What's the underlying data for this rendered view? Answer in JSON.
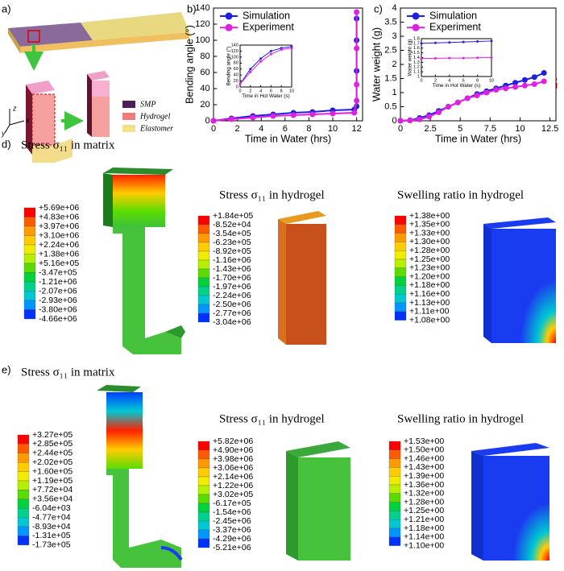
{
  "panels": {
    "a": {
      "label": "a)",
      "legend": [
        "SMP",
        "Hydrogel",
        "Elastomer"
      ],
      "axes": [
        "z",
        "y",
        "x"
      ]
    },
    "b": {
      "label": "b)"
    },
    "c": {
      "label": "c)"
    },
    "d": {
      "label": "d)",
      "matrix": {
        "title": "Stress σ₁₁ in matrix",
        "scale": [
          "+5.69e+06",
          "+4.83e+06",
          "+3.97e+06",
          "+3.10e+06",
          "+2.24e+06",
          "+1.38e+06",
          "+5.16e+05",
          "-3.47e+05",
          "-1.21e+06",
          "-2.07e+06",
          "-2.93e+06",
          "-3.80e+06",
          "-4.66e+06"
        ]
      },
      "hydrogel_stress": {
        "title": "Stress σ₁₁ in hydrogel",
        "scale": [
          "+1.84e+05",
          "-8.52e+04",
          "-3.54e+05",
          "-6.23e+05",
          "-8.92e+05",
          "-1.16e+06",
          "-1.43e+06",
          "-1.70e+06",
          "-1.97e+06",
          "-2.24e+06",
          "-2.50e+06",
          "-2.77e+06",
          "-3.04e+06"
        ]
      },
      "hydrogel_swelling": {
        "title": "Swelling ratio in hydrogel",
        "scale": [
          "+1.38e+00",
          "+1.35e+00",
          "+1.33e+00",
          "+1.30e+00",
          "+1.28e+00",
          "+1.25e+00",
          "+1.23e+00",
          "+1.20e+00",
          "+1.18e+00",
          "+1.16e+00",
          "+1.13e+00",
          "+1.11e+00",
          "+1.08e+00"
        ]
      }
    },
    "e": {
      "label": "e)",
      "matrix": {
        "title": "Stress σ₁₁ in matrix",
        "scale": [
          "+3.27e+05",
          "+2.85e+05",
          "+2.44e+05",
          "+2.02e+05",
          "+1.60e+05",
          "+1.19e+05",
          "+7.72e+04",
          "+3.56e+04",
          "-6.04e+03",
          "-4.77e+04",
          "-8.93e+04",
          "-1.31e+05",
          "-1.73e+05"
        ]
      },
      "hydrogel_stress": {
        "title": "Stress σ₁₁ in hydrogel",
        "scale": [
          "+5.82e+06",
          "+4.90e+06",
          "+3.98e+06",
          "+3.06e+06",
          "+2.14e+06",
          "+1.22e+06",
          "+3.02e+05",
          "-6.17e+05",
          "-1.54e+06",
          "-2.45e+06",
          "-3.37e+06",
          "-4.29e+06",
          "-5.21e+06"
        ]
      },
      "hydrogel_swelling": {
        "title": "Swelling ratio in hydrogel",
        "scale": [
          "+1.53e+00",
          "+1.50e+00",
          "+1.46e+00",
          "+1.43e+00",
          "+1.39e+00",
          "+1.36e+00",
          "+1.32e+00",
          "+1.28e+00",
          "+1.25e+00",
          "+1.21e+00",
          "+1.18e+00",
          "+1.14e+00",
          "+1.10e+00"
        ]
      }
    }
  },
  "colormap": [
    "#ff0000",
    "#ff5a00",
    "#ff9a00",
    "#ffcc00",
    "#f0ec00",
    "#b4f000",
    "#5adc00",
    "#00d23c",
    "#00d28c",
    "#00c8d2",
    "#0096ff",
    "#0032ff"
  ],
  "chart_data": [
    {
      "type": "line",
      "xlabel": "Time in Water (hrs)",
      "ylabel": "Bending angle (°)",
      "xlim": [
        0,
        12.5
      ],
      "ylim": [
        0,
        140
      ],
      "xticks": [
        0,
        2,
        4,
        6,
        8,
        10,
        12
      ],
      "yticks": [
        0,
        20,
        40,
        60,
        80,
        100,
        120,
        140
      ],
      "legend": "upper left",
      "series": [
        {
          "name": "Simulation",
          "color": "#1f1fe0",
          "x": [
            0,
            1.5,
            3.3,
            5,
            6.7,
            8.3,
            10,
            11.8,
            12,
            12,
            12,
            12
          ],
          "values": [
            0,
            3,
            6,
            8,
            10,
            11,
            13,
            14,
            18,
            62,
            100,
            127
          ]
        },
        {
          "name": "Experiment",
          "color": "#e020e0",
          "x": [
            0,
            1.5,
            3.3,
            5,
            6.7,
            8.3,
            10,
            11.8,
            12,
            12,
            12,
            12
          ],
          "values": [
            0,
            2,
            4,
            6,
            7,
            8,
            9,
            10,
            25,
            45,
            90,
            135
          ]
        }
      ],
      "inset": {
        "type": "line",
        "xlabel": "Time in Hot Water (s)",
        "ylabel": "Bending angle (°)",
        "xlim": [
          0,
          10
        ],
        "ylim": [
          0,
          140
        ],
        "xticks": [
          0,
          2,
          4,
          6,
          8,
          10
        ],
        "yticks": [
          0,
          20,
          40,
          60,
          80,
          100,
          120,
          140
        ],
        "series": [
          {
            "color": "#1f1fe0",
            "x": [
              0,
              2,
              4,
              6,
              8,
              10
            ],
            "values": [
              10,
              60,
              95,
              120,
              130,
              135
            ]
          },
          {
            "color": "#e020e0",
            "x": [
              0,
              2,
              4,
              6,
              8,
              10
            ],
            "values": [
              10,
              50,
              85,
              110,
              125,
              130
            ]
          }
        ]
      }
    },
    {
      "type": "line",
      "xlabel": "Time in Water (hrs)",
      "ylabel": "Water weight (g)",
      "xlim": [
        0,
        13
      ],
      "ylim": [
        0,
        4
      ],
      "xticks": [
        0,
        2.5,
        5,
        7.5,
        10,
        12.5
      ],
      "yticks": [
        0,
        0.5,
        1,
        1.5,
        2,
        2.5,
        3,
        3.5,
        4
      ],
      "legend": "upper left",
      "series": [
        {
          "name": "Simulation",
          "color": "#1f1fe0",
          "x": [
            0,
            0.8,
            1.6,
            2.4,
            3.2,
            4,
            4.8,
            5.6,
            6.4,
            7.2,
            8,
            8.8,
            9.6,
            10.4,
            11.2,
            12
          ],
          "values": [
            0,
            0.02,
            0.1,
            0.2,
            0.35,
            0.5,
            0.65,
            0.8,
            0.95,
            1.05,
            1.15,
            1.25,
            1.35,
            1.45,
            1.55,
            1.7
          ]
        },
        {
          "name": "Experiment",
          "color": "#e020e0",
          "x": [
            0,
            0.8,
            1.6,
            2.4,
            3.2,
            4,
            4.8,
            5.6,
            6.4,
            7.2,
            8,
            8.8,
            9.6,
            10.4,
            11.2,
            12
          ],
          "values": [
            0,
            0.01,
            0.05,
            0.15,
            0.3,
            0.5,
            0.65,
            0.8,
            0.9,
            1.0,
            1.1,
            1.15,
            1.2,
            1.25,
            1.3,
            1.4
          ]
        }
      ],
      "inset": {
        "type": "line",
        "xlabel": "Time in Hot Water (s)",
        "ylabel": "Water weight (g)",
        "xlim": [
          0,
          10
        ],
        "ylim": [
          1,
          1.8
        ],
        "xticks": [
          0,
          2,
          4,
          6,
          8,
          10
        ],
        "yticks": [
          1,
          1.1,
          1.2,
          1.3,
          1.4,
          1.5,
          1.6,
          1.7,
          1.8
        ],
        "series": [
          {
            "color": "#1f1fe0",
            "x": [
              0,
              2,
              4,
              6,
              8,
              10
            ],
            "values": [
              1.7,
              1.71,
              1.72,
              1.73,
              1.74,
              1.75
            ]
          },
          {
            "color": "#e020e0",
            "x": [
              0,
              2,
              4,
              6,
              8,
              10
            ],
            "values": [
              1.38,
              1.385,
              1.39,
              1.39,
              1.395,
              1.4
            ]
          }
        ]
      }
    }
  ]
}
